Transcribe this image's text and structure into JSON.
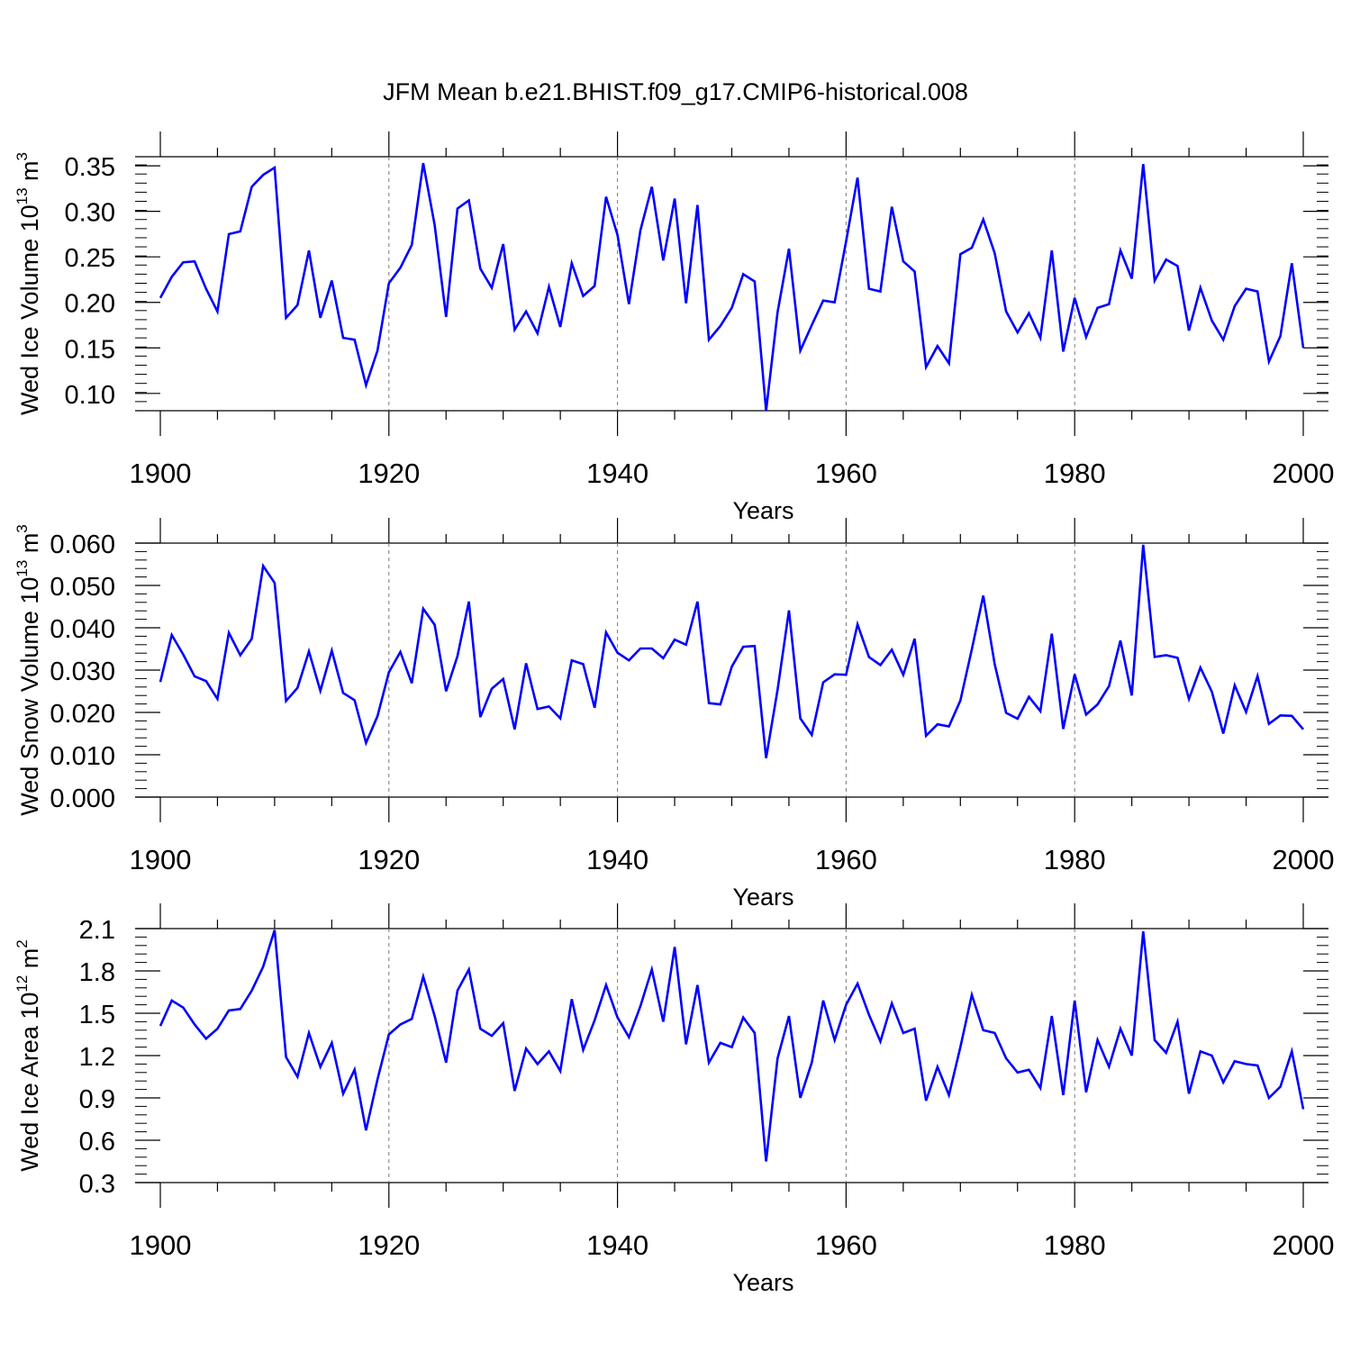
{
  "title": "JFM Mean b.e21.BHIST.f09_g17.CMIP6-historical.008",
  "chart_data": [
    {
      "type": "line",
      "ylabel": "Wed Ice Volume",
      "ylabel_scale": "10",
      "ylabel_exp": "13",
      "ylabel_unit": "m",
      "ylabel_unit_exp": "3",
      "xlabel": "Years",
      "xlim": [
        1900,
        2000
      ],
      "ylim": [
        0.081,
        0.36
      ],
      "x_ticks": [
        1900,
        1920,
        1940,
        1960,
        1980,
        2000
      ],
      "y_ticks": [
        0.1,
        0.15,
        0.2,
        0.25,
        0.3,
        0.35
      ],
      "y_tick_labels": [
        "0.10",
        "0.15",
        "0.20",
        "0.25",
        "0.30",
        "0.35"
      ],
      "y_minor_step": 0.01,
      "line_color": "#0000ff",
      "x_start": 1900,
      "values": [
        0.205,
        0.228,
        0.244,
        0.245,
        0.215,
        0.19,
        0.275,
        0.278,
        0.327,
        0.34,
        0.348,
        0.183,
        0.197,
        0.257,
        0.183,
        0.224,
        0.161,
        0.159,
        0.109,
        0.147,
        0.221,
        0.238,
        0.263,
        0.353,
        0.285,
        0.184,
        0.303,
        0.312,
        0.237,
        0.216,
        0.264,
        0.17,
        0.19,
        0.166,
        0.217,
        0.173,
        0.243,
        0.207,
        0.218,
        0.316,
        0.274,
        0.198,
        0.279,
        0.327,
        0.246,
        0.314,
        0.199,
        0.307,
        0.159,
        0.174,
        0.194,
        0.231,
        0.223,
        0.081,
        0.189,
        0.259,
        0.147,
        0.175,
        0.202,
        0.2,
        0.267,
        0.337,
        0.215,
        0.212,
        0.305,
        0.245,
        0.234,
        0.129,
        0.152,
        0.133,
        0.253,
        0.26,
        0.291,
        0.254,
        0.19,
        0.167,
        0.188,
        0.161,
        0.257,
        0.146,
        0.205,
        0.162,
        0.194,
        0.198,
        0.257,
        0.226,
        0.352,
        0.224,
        0.247,
        0.24,
        0.169,
        0.216,
        0.18,
        0.159,
        0.196,
        0.215,
        0.212,
        0.135,
        0.163,
        0.243,
        0.15
      ]
    },
    {
      "type": "line",
      "ylabel": "Wed Snow Volume",
      "ylabel_scale": "10",
      "ylabel_exp": "13",
      "ylabel_unit": "m",
      "ylabel_unit_exp": "3",
      "xlabel": "Years",
      "xlim": [
        1900,
        2000
      ],
      "ylim": [
        0.0,
        0.06
      ],
      "x_ticks": [
        1900,
        1920,
        1940,
        1960,
        1980,
        2000
      ],
      "y_ticks": [
        0.0,
        0.01,
        0.02,
        0.03,
        0.04,
        0.05,
        0.06
      ],
      "y_tick_labels": [
        "0.000",
        "0.010",
        "0.020",
        "0.030",
        "0.040",
        "0.050",
        "0.060"
      ],
      "y_minor_step": 0.002,
      "line_color": "#0000ff",
      "x_start": 1900,
      "values": [
        0.0272,
        0.0383,
        0.0337,
        0.0285,
        0.0274,
        0.0232,
        0.0388,
        0.0335,
        0.0374,
        0.0546,
        0.0506,
        0.0227,
        0.0258,
        0.0344,
        0.0251,
        0.0346,
        0.0246,
        0.0229,
        0.0128,
        0.0191,
        0.0295,
        0.0343,
        0.0269,
        0.0445,
        0.0407,
        0.025,
        0.0333,
        0.0462,
        0.0189,
        0.0256,
        0.0279,
        0.016,
        0.0316,
        0.0208,
        0.0214,
        0.0186,
        0.0323,
        0.0314,
        0.0211,
        0.0389,
        0.0341,
        0.0323,
        0.0351,
        0.0351,
        0.0328,
        0.0372,
        0.036,
        0.0462,
        0.0222,
        0.0219,
        0.0308,
        0.0355,
        0.0357,
        0.0092,
        0.0253,
        0.0441,
        0.0186,
        0.0147,
        0.0271,
        0.029,
        0.0289,
        0.0408,
        0.0331,
        0.0312,
        0.0348,
        0.0289,
        0.0374,
        0.0145,
        0.0172,
        0.0167,
        0.0228,
        0.0349,
        0.0476,
        0.0314,
        0.0199,
        0.0185,
        0.0237,
        0.0203,
        0.0386,
        0.0161,
        0.029,
        0.0195,
        0.0219,
        0.0262,
        0.037,
        0.024,
        0.0596,
        0.0331,
        0.0335,
        0.0329,
        0.0232,
        0.0306,
        0.0249,
        0.015,
        0.0264,
        0.0201,
        0.0286,
        0.0173,
        0.0193,
        0.0192,
        0.016
      ]
    },
    {
      "type": "line",
      "ylabel": "Wed Ice Area",
      "ylabel_scale": "10",
      "ylabel_exp": "12",
      "ylabel_unit": "m",
      "ylabel_unit_exp": "2",
      "xlabel": "Years",
      "xlim": [
        1900,
        2000
      ],
      "ylim": [
        0.3,
        2.1
      ],
      "x_ticks": [
        1900,
        1920,
        1940,
        1960,
        1980,
        2000
      ],
      "y_ticks": [
        0.3,
        0.6,
        0.9,
        1.2,
        1.5,
        1.8,
        2.1
      ],
      "y_tick_labels": [
        "0.3",
        "0.6",
        "0.9",
        "1.2",
        "1.5",
        "1.8",
        "2.1"
      ],
      "y_minor_step": 0.06,
      "line_color": "#0000ff",
      "x_start": 1900,
      "values": [
        1.41,
        1.59,
        1.54,
        1.42,
        1.32,
        1.39,
        1.52,
        1.53,
        1.66,
        1.83,
        2.09,
        1.19,
        1.05,
        1.36,
        1.12,
        1.29,
        0.93,
        1.1,
        0.67,
        1.03,
        1.35,
        1.42,
        1.46,
        1.76,
        1.48,
        1.15,
        1.66,
        1.81,
        1.39,
        1.34,
        1.43,
        0.95,
        1.25,
        1.14,
        1.23,
        1.09,
        1.6,
        1.24,
        1.45,
        1.7,
        1.47,
        1.33,
        1.55,
        1.81,
        1.44,
        1.97,
        1.28,
        1.7,
        1.15,
        1.29,
        1.26,
        1.47,
        1.36,
        0.45,
        1.18,
        1.48,
        0.9,
        1.15,
        1.59,
        1.31,
        1.56,
        1.71,
        1.49,
        1.3,
        1.57,
        1.36,
        1.39,
        0.88,
        1.12,
        0.92,
        1.26,
        1.63,
        1.38,
        1.36,
        1.18,
        1.08,
        1.1,
        0.97,
        1.48,
        0.92,
        1.59,
        0.94,
        1.31,
        1.12,
        1.39,
        1.2,
        2.08,
        1.31,
        1.22,
        1.44,
        0.93,
        1.23,
        1.2,
        1.01,
        1.16,
        1.14,
        1.13,
        0.9,
        0.98,
        1.23,
        0.82
      ]
    }
  ]
}
